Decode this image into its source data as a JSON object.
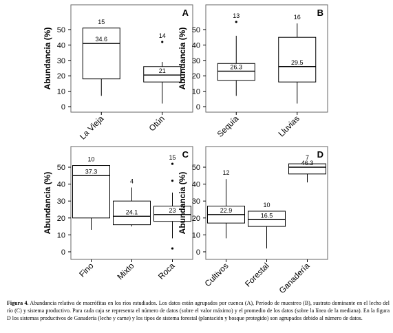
{
  "chart_data": [
    {
      "type": "box",
      "panel_label": "A",
      "ylabel": "Abundancia (%)",
      "ylim": [
        0,
        50
      ],
      "yticks": [
        0,
        10,
        20,
        30,
        40,
        50
      ],
      "categories": [
        {
          "label": "La Vieja",
          "min": 7,
          "q1": 18,
          "median": 41,
          "q3": 51,
          "max": 51,
          "outliers": [],
          "n": "15",
          "mean": "34.6"
        },
        {
          "label": "Otún",
          "min": 2,
          "q1": 16,
          "median": 20.5,
          "q3": 26,
          "max": 29,
          "outliers": [
            42
          ],
          "n": "14",
          "mean": "21"
        }
      ]
    },
    {
      "type": "box",
      "panel_label": "B",
      "ylabel": "Abundancia (%)",
      "ylim": [
        0,
        50
      ],
      "yticks": [
        0,
        10,
        20,
        30,
        40,
        50
      ],
      "categories": [
        {
          "label": "Sequía",
          "min": 7,
          "q1": 17,
          "median": 23,
          "q3": 28,
          "max": 46,
          "outliers": [
            55
          ],
          "n": "13",
          "mean": "26.3"
        },
        {
          "label": "Lluvias",
          "min": 2,
          "q1": 16,
          "median": 26,
          "q3": 45,
          "max": 54,
          "outliers": [],
          "n": "16",
          "mean": "29.5"
        }
      ]
    },
    {
      "type": "box",
      "panel_label": "C",
      "ylabel": "Abundancia (%)",
      "ylim": [
        0,
        50
      ],
      "yticks": [
        0,
        10,
        20,
        30,
        40,
        50
      ],
      "categories": [
        {
          "label": "Fino",
          "min": 13,
          "q1": 20,
          "median": 45,
          "q3": 51,
          "max": 51,
          "outliers": [],
          "n": "10",
          "mean": "37.3"
        },
        {
          "label": "Mixto",
          "min": 15,
          "q1": 16,
          "median": 21,
          "q3": 30,
          "max": 38,
          "outliers": [],
          "n": "4",
          "mean": "24.1"
        },
        {
          "label": "Roca",
          "min": 8,
          "q1": 18,
          "median": 22,
          "q3": 27,
          "max": 35,
          "outliers": [
            42,
            2,
            52
          ],
          "n": "15",
          "mean": "23"
        }
      ]
    },
    {
      "type": "box",
      "panel_label": "D",
      "ylabel": "Abundancia (%)",
      "ylim": [
        0,
        50
      ],
      "yticks": [
        0,
        10,
        20,
        30,
        40,
        50
      ],
      "categories": [
        {
          "label": "Cultivos",
          "min": 8,
          "q1": 17,
          "median": 22,
          "q3": 27,
          "max": 43,
          "outliers": [],
          "n": "12",
          "mean": "22.9"
        },
        {
          "label": "Forestal",
          "min": 2,
          "q1": 15,
          "median": 19,
          "q3": 24,
          "max": 24,
          "outliers": [],
          "n": "10",
          "mean": "16.5"
        },
        {
          "label": "Ganadería",
          "min": 41,
          "q1": 46,
          "median": 50,
          "q3": 52,
          "max": 52,
          "outliers": [],
          "n": "7",
          "mean": "46.3"
        }
      ]
    }
  ],
  "caption": {
    "label": "Figura 4.",
    "text": " Abundancia relativa de macrófitas en los ríos estudiados. Los datos están agrupados por cuenca (A), Periodo de muestreo (B), sustrato dominante en el lecho del río (C) y sistema productivo. Para cada caja se representa el número de datos (sobre el valor máximo) y el promedio de los datos (sobre la línea de la mediana). En la figura D los sistemas productivos de Ganadería (leche y carne) y los tipos de sistema forestal (plantación y bosque protegido) son agrupados debido al número de datos."
  },
  "colors": {
    "box_fill": "#ffffff",
    "stroke": "#000000",
    "frame": "#666666"
  }
}
